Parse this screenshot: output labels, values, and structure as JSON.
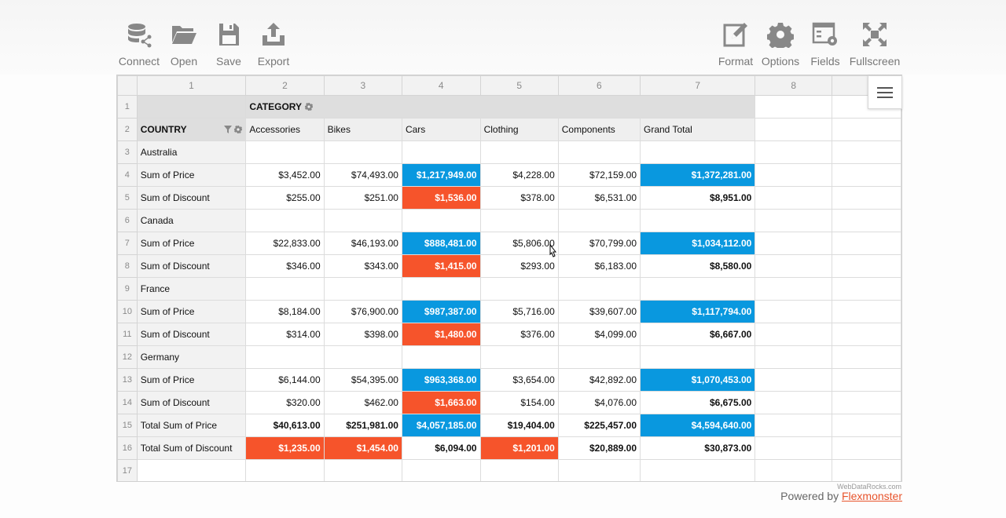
{
  "toolbar": {
    "left": [
      {
        "label": "Connect",
        "icon": "database-connect-icon"
      },
      {
        "label": "Open",
        "icon": "folder-open-icon"
      },
      {
        "label": "Save",
        "icon": "save-disk-icon"
      },
      {
        "label": "Export",
        "icon": "export-upload-icon"
      }
    ],
    "right": [
      {
        "label": "Format",
        "icon": "format-edit-icon"
      },
      {
        "label": "Options",
        "icon": "gear-icon"
      },
      {
        "label": "Fields",
        "icon": "fields-icon"
      },
      {
        "label": "Fullscreen",
        "icon": "fullscreen-icon"
      }
    ]
  },
  "grid": {
    "column_numbers": [
      "1",
      "2",
      "3",
      "4",
      "5",
      "6",
      "7",
      "8"
    ],
    "row_numbers": [
      "1",
      "2",
      "3",
      "4",
      "5",
      "6",
      "7",
      "8",
      "9",
      "10",
      "11",
      "12",
      "13",
      "14",
      "15",
      "16",
      "17"
    ],
    "category_header": "CATEGORY",
    "country_header": "COUNTRY",
    "categories": [
      "Accessories",
      "Bikes",
      "Cars",
      "Clothing",
      "Components",
      "Grand Total"
    ],
    "rows": [
      {
        "label": "Australia",
        "type": "country"
      },
      {
        "label": "Sum of Price",
        "type": "measure",
        "values": [
          "$3,452.00",
          "$74,493.00",
          "$1,217,949.00",
          "$4,228.00",
          "$72,159.00",
          "$1,372,281.00"
        ],
        "styles": [
          "",
          "",
          "blue",
          "",
          "",
          "blue"
        ]
      },
      {
        "label": "Sum of Discount",
        "type": "measure",
        "values": [
          "$255.00",
          "$251.00",
          "$1,536.00",
          "$378.00",
          "$6,531.00",
          "$8,951.00"
        ],
        "styles": [
          "",
          "",
          "red",
          "",
          "",
          "bold"
        ]
      },
      {
        "label": "Canada",
        "type": "country"
      },
      {
        "label": "Sum of Price",
        "type": "measure",
        "values": [
          "$22,833.00",
          "$46,193.00",
          "$888,481.00",
          "$5,806.00",
          "$70,799.00",
          "$1,034,112.00"
        ],
        "styles": [
          "",
          "",
          "blue",
          "",
          "",
          "blue"
        ]
      },
      {
        "label": "Sum of Discount",
        "type": "measure",
        "values": [
          "$346.00",
          "$343.00",
          "$1,415.00",
          "$293.00",
          "$6,183.00",
          "$8,580.00"
        ],
        "styles": [
          "",
          "",
          "red",
          "",
          "",
          "bold"
        ]
      },
      {
        "label": "France",
        "type": "country"
      },
      {
        "label": "Sum of Price",
        "type": "measure",
        "values": [
          "$8,184.00",
          "$76,900.00",
          "$987,387.00",
          "$5,716.00",
          "$39,607.00",
          "$1,117,794.00"
        ],
        "styles": [
          "",
          "",
          "blue",
          "",
          "",
          "blue"
        ]
      },
      {
        "label": "Sum of Discount",
        "type": "measure",
        "values": [
          "$314.00",
          "$398.00",
          "$1,480.00",
          "$376.00",
          "$4,099.00",
          "$6,667.00"
        ],
        "styles": [
          "",
          "",
          "red",
          "",
          "",
          "bold"
        ]
      },
      {
        "label": "Germany",
        "type": "country"
      },
      {
        "label": "Sum of Price",
        "type": "measure",
        "values": [
          "$6,144.00",
          "$54,395.00",
          "$963,368.00",
          "$3,654.00",
          "$42,892.00",
          "$1,070,453.00"
        ],
        "styles": [
          "",
          "",
          "blue",
          "",
          "",
          "blue"
        ]
      },
      {
        "label": "Sum of Discount",
        "type": "measure",
        "values": [
          "$320.00",
          "$462.00",
          "$1,663.00",
          "$154.00",
          "$4,076.00",
          "$6,675.00"
        ],
        "styles": [
          "",
          "",
          "red",
          "",
          "",
          "bold"
        ]
      },
      {
        "label": "Total Sum of Price",
        "type": "total",
        "values": [
          "$40,613.00",
          "$251,981.00",
          "$4,057,185.00",
          "$19,404.00",
          "$225,457.00",
          "$4,594,640.00"
        ],
        "styles": [
          "bold",
          "bold",
          "blue",
          "bold",
          "bold",
          "blue"
        ]
      },
      {
        "label": "Total Sum of Discount",
        "type": "total",
        "values": [
          "$1,235.00",
          "$1,454.00",
          "$6,094.00",
          "$1,201.00",
          "$20,889.00",
          "$30,873.00"
        ],
        "styles": [
          "red",
          "red",
          "bold",
          "red",
          "bold",
          "bold"
        ]
      }
    ]
  },
  "colors": {
    "highlight_blue": "#0998df",
    "highlight_red": "#f6542b",
    "toolbar_icon": "#888888",
    "link": "#e8542c"
  },
  "footer": {
    "credit": "WebDataRocks.com",
    "powered_by": "Powered by",
    "link_text": "Flexmonster"
  }
}
